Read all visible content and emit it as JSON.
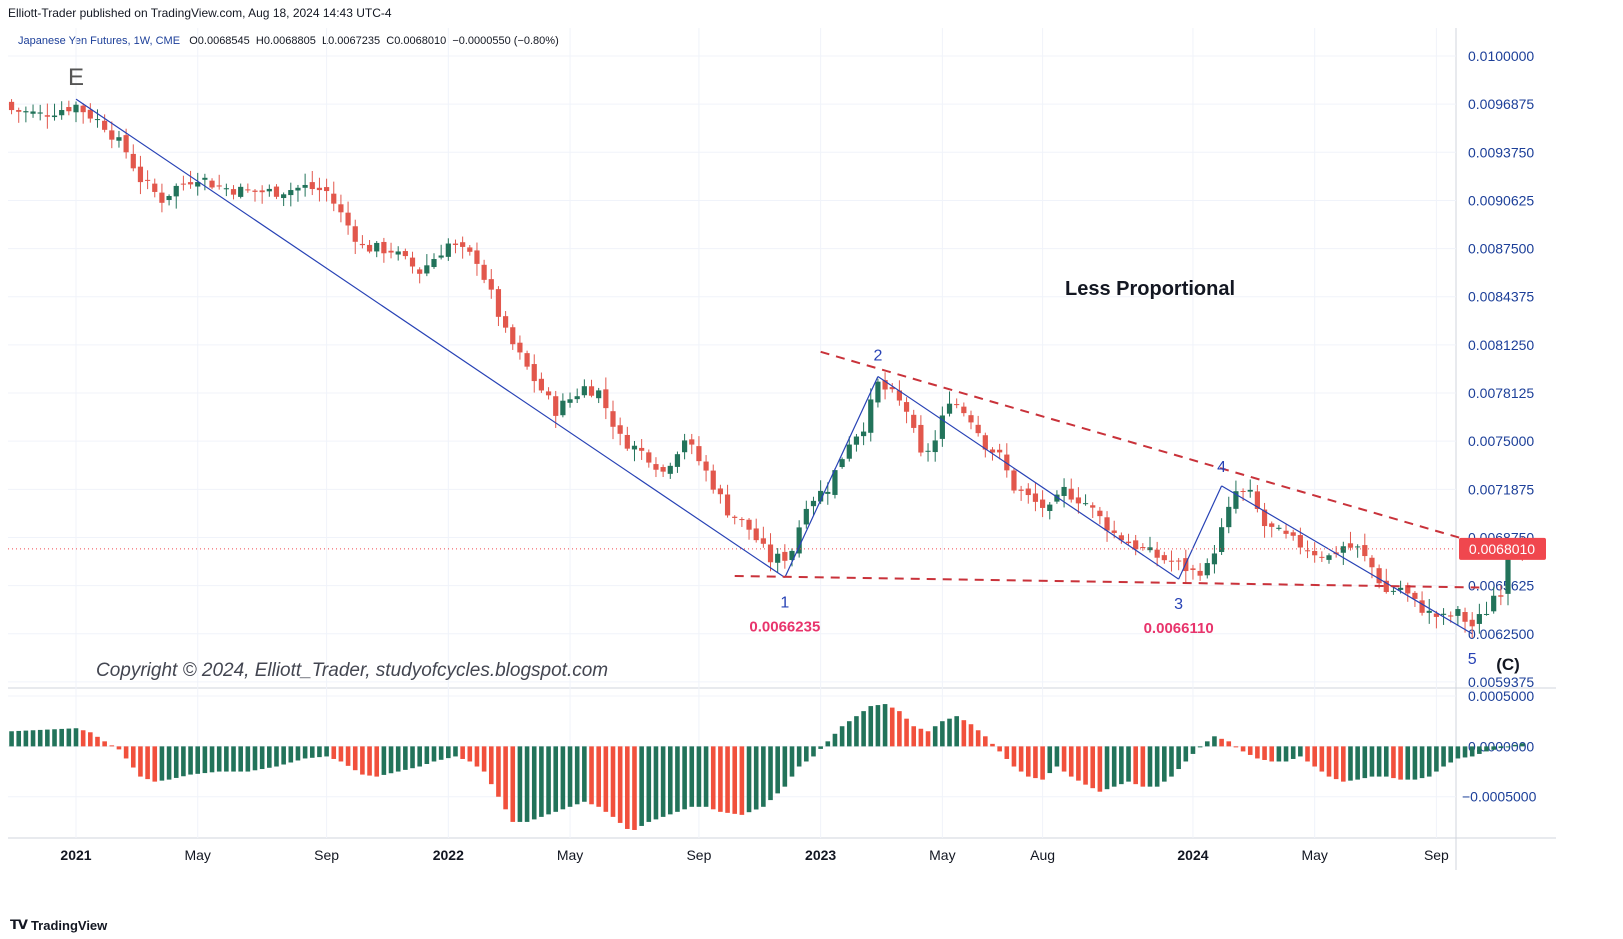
{
  "header": {
    "published": "Elliott-Trader published on TradingView.com, Aug 18, 2024 14:43 UTC-4",
    "symbol": "Japanese Yen Futures, 1W, CME",
    "open_label": "O",
    "open": "0.0068545",
    "high_label": "H",
    "high": "0.0068805",
    "low_label": "L",
    "low": "0.0067235",
    "close_label": "C",
    "close": "0.0068010",
    "change": "−0.0000550 (−0.80%)"
  },
  "colors": {
    "up": "#22735a",
    "down": "#e2574c",
    "down_hist": "#f1503c",
    "trend": "#2742b5",
    "dash": "#c9323a",
    "price_tag": "#f0474e",
    "axis_text": "#1c3f99",
    "label_red": "#e8346c",
    "grid": "#f0f3fa"
  },
  "annotations": {
    "title": "Less Proportional",
    "copyright": "Copyright © 2024, Elliott_Trader, studyofcycles.blogspot.com",
    "wave_E": "E",
    "wave_1": "1",
    "wave_2": "2",
    "wave_3": "3",
    "wave_4": "4",
    "wave_5": "5",
    "wave_C": "(C)",
    "low_1_value": "0.0066235",
    "low_3_value": "0.0066110"
  },
  "footer": {
    "brand": "TradingView"
  },
  "chart_data": {
    "type": "candlestick",
    "title": "Japanese Yen Futures, 1W, CME",
    "price_axis_labels": [
      "0.0100000",
      "0.0096875",
      "0.0093750",
      "0.0090625",
      "0.0087500",
      "0.0084375",
      "0.0081250",
      "0.0078125",
      "0.0075000",
      "0.0071875",
      "0.0068750",
      "0.0065625",
      "0.0062500",
      "0.0059375"
    ],
    "ylim": [
      0.005859,
      0.010104
    ],
    "current_price": "0.0068010",
    "time_axis_labels": [
      {
        "label": "2021",
        "week": 0,
        "bold": true
      },
      {
        "label": "May",
        "week": 17,
        "bold": false
      },
      {
        "label": "Sep",
        "week": 35,
        "bold": false
      },
      {
        "label": "2022",
        "week": 52,
        "bold": true
      },
      {
        "label": "May",
        "week": 69,
        "bold": false
      },
      {
        "label": "Sep",
        "week": 87,
        "bold": false
      },
      {
        "label": "2023",
        "week": 104,
        "bold": true
      },
      {
        "label": "May",
        "week": 121,
        "bold": false
      },
      {
        "label": "Aug",
        "week": 135,
        "bold": false
      },
      {
        "label": "2024",
        "week": 156,
        "bold": true
      },
      {
        "label": "May",
        "week": 173,
        "bold": false
      },
      {
        "label": "Sep",
        "week": 190,
        "bold": false
      }
    ],
    "close_anchors": [
      [
        -9,
        0.00965
      ],
      [
        -5,
        0.00962
      ],
      [
        0,
        0.00968
      ],
      [
        4,
        0.00955
      ],
      [
        7,
        0.00938
      ],
      [
        9,
        0.0092
      ],
      [
        12,
        0.00907
      ],
      [
        14,
        0.00915
      ],
      [
        17,
        0.00922
      ],
      [
        20,
        0.00915
      ],
      [
        24,
        0.00912
      ],
      [
        28,
        0.00912
      ],
      [
        32,
        0.00915
      ],
      [
        35,
        0.00912
      ],
      [
        38,
        0.0089
      ],
      [
        40,
        0.00876
      ],
      [
        44,
        0.00874
      ],
      [
        48,
        0.0086
      ],
      [
        52,
        0.00878
      ],
      [
        56,
        0.00868
      ],
      [
        58,
        0.00845
      ],
      [
        60,
        0.0082
      ],
      [
        62,
        0.00805
      ],
      [
        64,
        0.0079
      ],
      [
        67,
        0.0077
      ],
      [
        71,
        0.00785
      ],
      [
        73,
        0.00782
      ],
      [
        76,
        0.00752
      ],
      [
        80,
        0.0074
      ],
      [
        82,
        0.0073
      ],
      [
        85,
        0.00752
      ],
      [
        88,
        0.0073
      ],
      [
        91,
        0.00705
      ],
      [
        94,
        0.00693
      ],
      [
        97,
        0.00673
      ],
      [
        99,
        0.00675
      ],
      [
        100,
        0.0068
      ],
      [
        102,
        0.0071
      ],
      [
        105,
        0.0072
      ],
      [
        108,
        0.0075
      ],
      [
        110,
        0.0076
      ],
      [
        112,
        0.00787
      ],
      [
        114,
        0.0078
      ],
      [
        116,
        0.0077
      ],
      [
        118,
        0.0074
      ],
      [
        120,
        0.0075
      ],
      [
        122,
        0.00778
      ],
      [
        125,
        0.00765
      ],
      [
        127,
        0.00748
      ],
      [
        129,
        0.0074
      ],
      [
        131,
        0.0072
      ],
      [
        134,
        0.0071
      ],
      [
        136,
        0.00705
      ],
      [
        138,
        0.00718
      ],
      [
        141,
        0.0071
      ],
      [
        143,
        0.007
      ],
      [
        145,
        0.0069
      ],
      [
        148,
        0.00682
      ],
      [
        151,
        0.00675
      ],
      [
        154,
        0.0067
      ],
      [
        156,
        0.00665
      ],
      [
        158,
        0.00668
      ],
      [
        160,
        0.00692
      ],
      [
        162,
        0.00717
      ],
      [
        164,
        0.00715
      ],
      [
        166,
        0.00695
      ],
      [
        168,
        0.0069
      ],
      [
        170,
        0.00685
      ],
      [
        173,
        0.00678
      ],
      [
        175,
        0.00675
      ],
      [
        177,
        0.00682
      ],
      [
        179,
        0.0068
      ],
      [
        181,
        0.00668
      ],
      [
        183,
        0.00652
      ],
      [
        185,
        0.00655
      ],
      [
        187,
        0.00645
      ],
      [
        189,
        0.00638
      ],
      [
        191,
        0.00635
      ],
      [
        193,
        0.00638
      ],
      [
        195,
        0.0063
      ],
      [
        197,
        0.0064
      ],
      [
        198,
        0.0065
      ],
      [
        199,
        0.00653
      ],
      [
        200,
        0.00685
      ],
      [
        201,
        0.00686
      ],
      [
        202,
        0.0068
      ]
    ],
    "histogram_anchors": [
      [
        -9,
        0.00015
      ],
      [
        0,
        0.00018
      ],
      [
        2,
        0.00014
      ],
      [
        4,
        5e-05
      ],
      [
        6,
        -3e-05
      ],
      [
        9,
        -0.0003
      ],
      [
        11,
        -0.00035
      ],
      [
        13,
        -0.00033
      ],
      [
        16,
        -0.00028
      ],
      [
        20,
        -0.00025
      ],
      [
        24,
        -0.00025
      ],
      [
        28,
        -0.0002
      ],
      [
        32,
        -0.00012
      ],
      [
        35,
        -0.0001
      ],
      [
        37,
        -0.00015
      ],
      [
        40,
        -0.00028
      ],
      [
        42,
        -0.0003
      ],
      [
        45,
        -0.00025
      ],
      [
        48,
        -0.0002
      ],
      [
        50,
        -0.00015
      ],
      [
        53,
        -0.0001
      ],
      [
        55,
        -0.00015
      ],
      [
        57,
        -0.00025
      ],
      [
        59,
        -0.0005
      ],
      [
        61,
        -0.00075
      ],
      [
        63,
        -0.00075
      ],
      [
        65,
        -0.0007
      ],
      [
        67,
        -0.00065
      ],
      [
        69,
        -0.0006
      ],
      [
        71,
        -0.00055
      ],
      [
        73,
        -0.0006
      ],
      [
        75,
        -0.0007
      ],
      [
        77,
        -0.00082
      ],
      [
        78,
        -0.00083
      ],
      [
        80,
        -0.00075
      ],
      [
        82,
        -0.0007
      ],
      [
        84,
        -0.00065
      ],
      [
        86,
        -0.0006
      ],
      [
        88,
        -0.0006
      ],
      [
        90,
        -0.00065
      ],
      [
        93,
        -0.00068
      ],
      [
        96,
        -0.0006
      ],
      [
        99,
        -0.0004
      ],
      [
        101,
        -0.0002
      ],
      [
        103,
        -0.0001
      ],
      [
        105,
        5e-05
      ],
      [
        107,
        0.0002
      ],
      [
        109,
        0.0003
      ],
      [
        111,
        0.0004
      ],
      [
        113,
        0.00042
      ],
      [
        115,
        0.00035
      ],
      [
        117,
        0.0002
      ],
      [
        119,
        0.00015
      ],
      [
        121,
        0.00025
      ],
      [
        123,
        0.0003
      ],
      [
        125,
        0.00022
      ],
      [
        127,
        0.0001
      ],
      [
        129,
        -5e-05
      ],
      [
        131,
        -0.0002
      ],
      [
        133,
        -0.0003
      ],
      [
        135,
        -0.00033
      ],
      [
        137,
        -0.0002
      ],
      [
        139,
        -0.0003
      ],
      [
        141,
        -0.00038
      ],
      [
        143,
        -0.00045
      ],
      [
        145,
        -0.0004
      ],
      [
        147,
        -0.00035
      ],
      [
        149,
        -0.0004
      ],
      [
        151,
        -0.0004
      ],
      [
        153,
        -0.0003
      ],
      [
        155,
        -0.00015
      ],
      [
        157,
        0.0
      ],
      [
        159,
        0.0001
      ],
      [
        161,
        5e-05
      ],
      [
        163,
        -5e-05
      ],
      [
        165,
        -0.00012
      ],
      [
        167,
        -0.00015
      ],
      [
        169,
        -0.00015
      ],
      [
        171,
        -0.0001
      ],
      [
        173,
        -0.0002
      ],
      [
        175,
        -0.0003
      ],
      [
        177,
        -0.00035
      ],
      [
        179,
        -0.00033
      ],
      [
        181,
        -0.0003
      ],
      [
        183,
        -0.0003
      ],
      [
        185,
        -0.00033
      ],
      [
        187,
        -0.00033
      ],
      [
        189,
        -0.0003
      ],
      [
        191,
        -0.0002
      ],
      [
        193,
        -0.00012
      ],
      [
        195,
        -0.0001
      ],
      [
        197,
        -5e-05
      ],
      [
        200,
        0.0
      ],
      [
        202,
        3e-05
      ]
    ],
    "histogram_axis_labels": [
      "0.0005000",
      "0.0000000",
      "−0.0005000"
    ],
    "histogram_ylim": [
      -0.00087,
      0.00052
    ],
    "trend_lines": [
      {
        "name": "wave-E-1",
        "points": [
          [
            0,
            0.00972
          ],
          [
            99,
            0.006615
          ]
        ],
        "style": "solid"
      },
      {
        "name": "wave-1-2",
        "points": [
          [
            99,
            0.006615
          ],
          [
            112,
            0.00792
          ]
        ],
        "style": "solid"
      },
      {
        "name": "wave-2-3",
        "points": [
          [
            112,
            0.00792
          ],
          [
            154,
            0.006605
          ]
        ],
        "style": "solid"
      },
      {
        "name": "wave-3-4",
        "points": [
          [
            154,
            0.006605
          ],
          [
            160,
            0.00721
          ]
        ],
        "style": "solid"
      },
      {
        "name": "wave-4-5",
        "points": [
          [
            160,
            0.00721
          ],
          [
            195,
            0.00625
          ]
        ],
        "style": "solid"
      },
      {
        "name": "upper-dashed",
        "points": [
          [
            104,
            0.00808
          ],
          [
            202,
            0.006755
          ]
        ],
        "style": "dashed"
      },
      {
        "name": "lower-dashed",
        "points": [
          [
            92,
            0.006625
          ],
          [
            196,
            0.00655
          ]
        ],
        "style": "dashed"
      }
    ]
  }
}
